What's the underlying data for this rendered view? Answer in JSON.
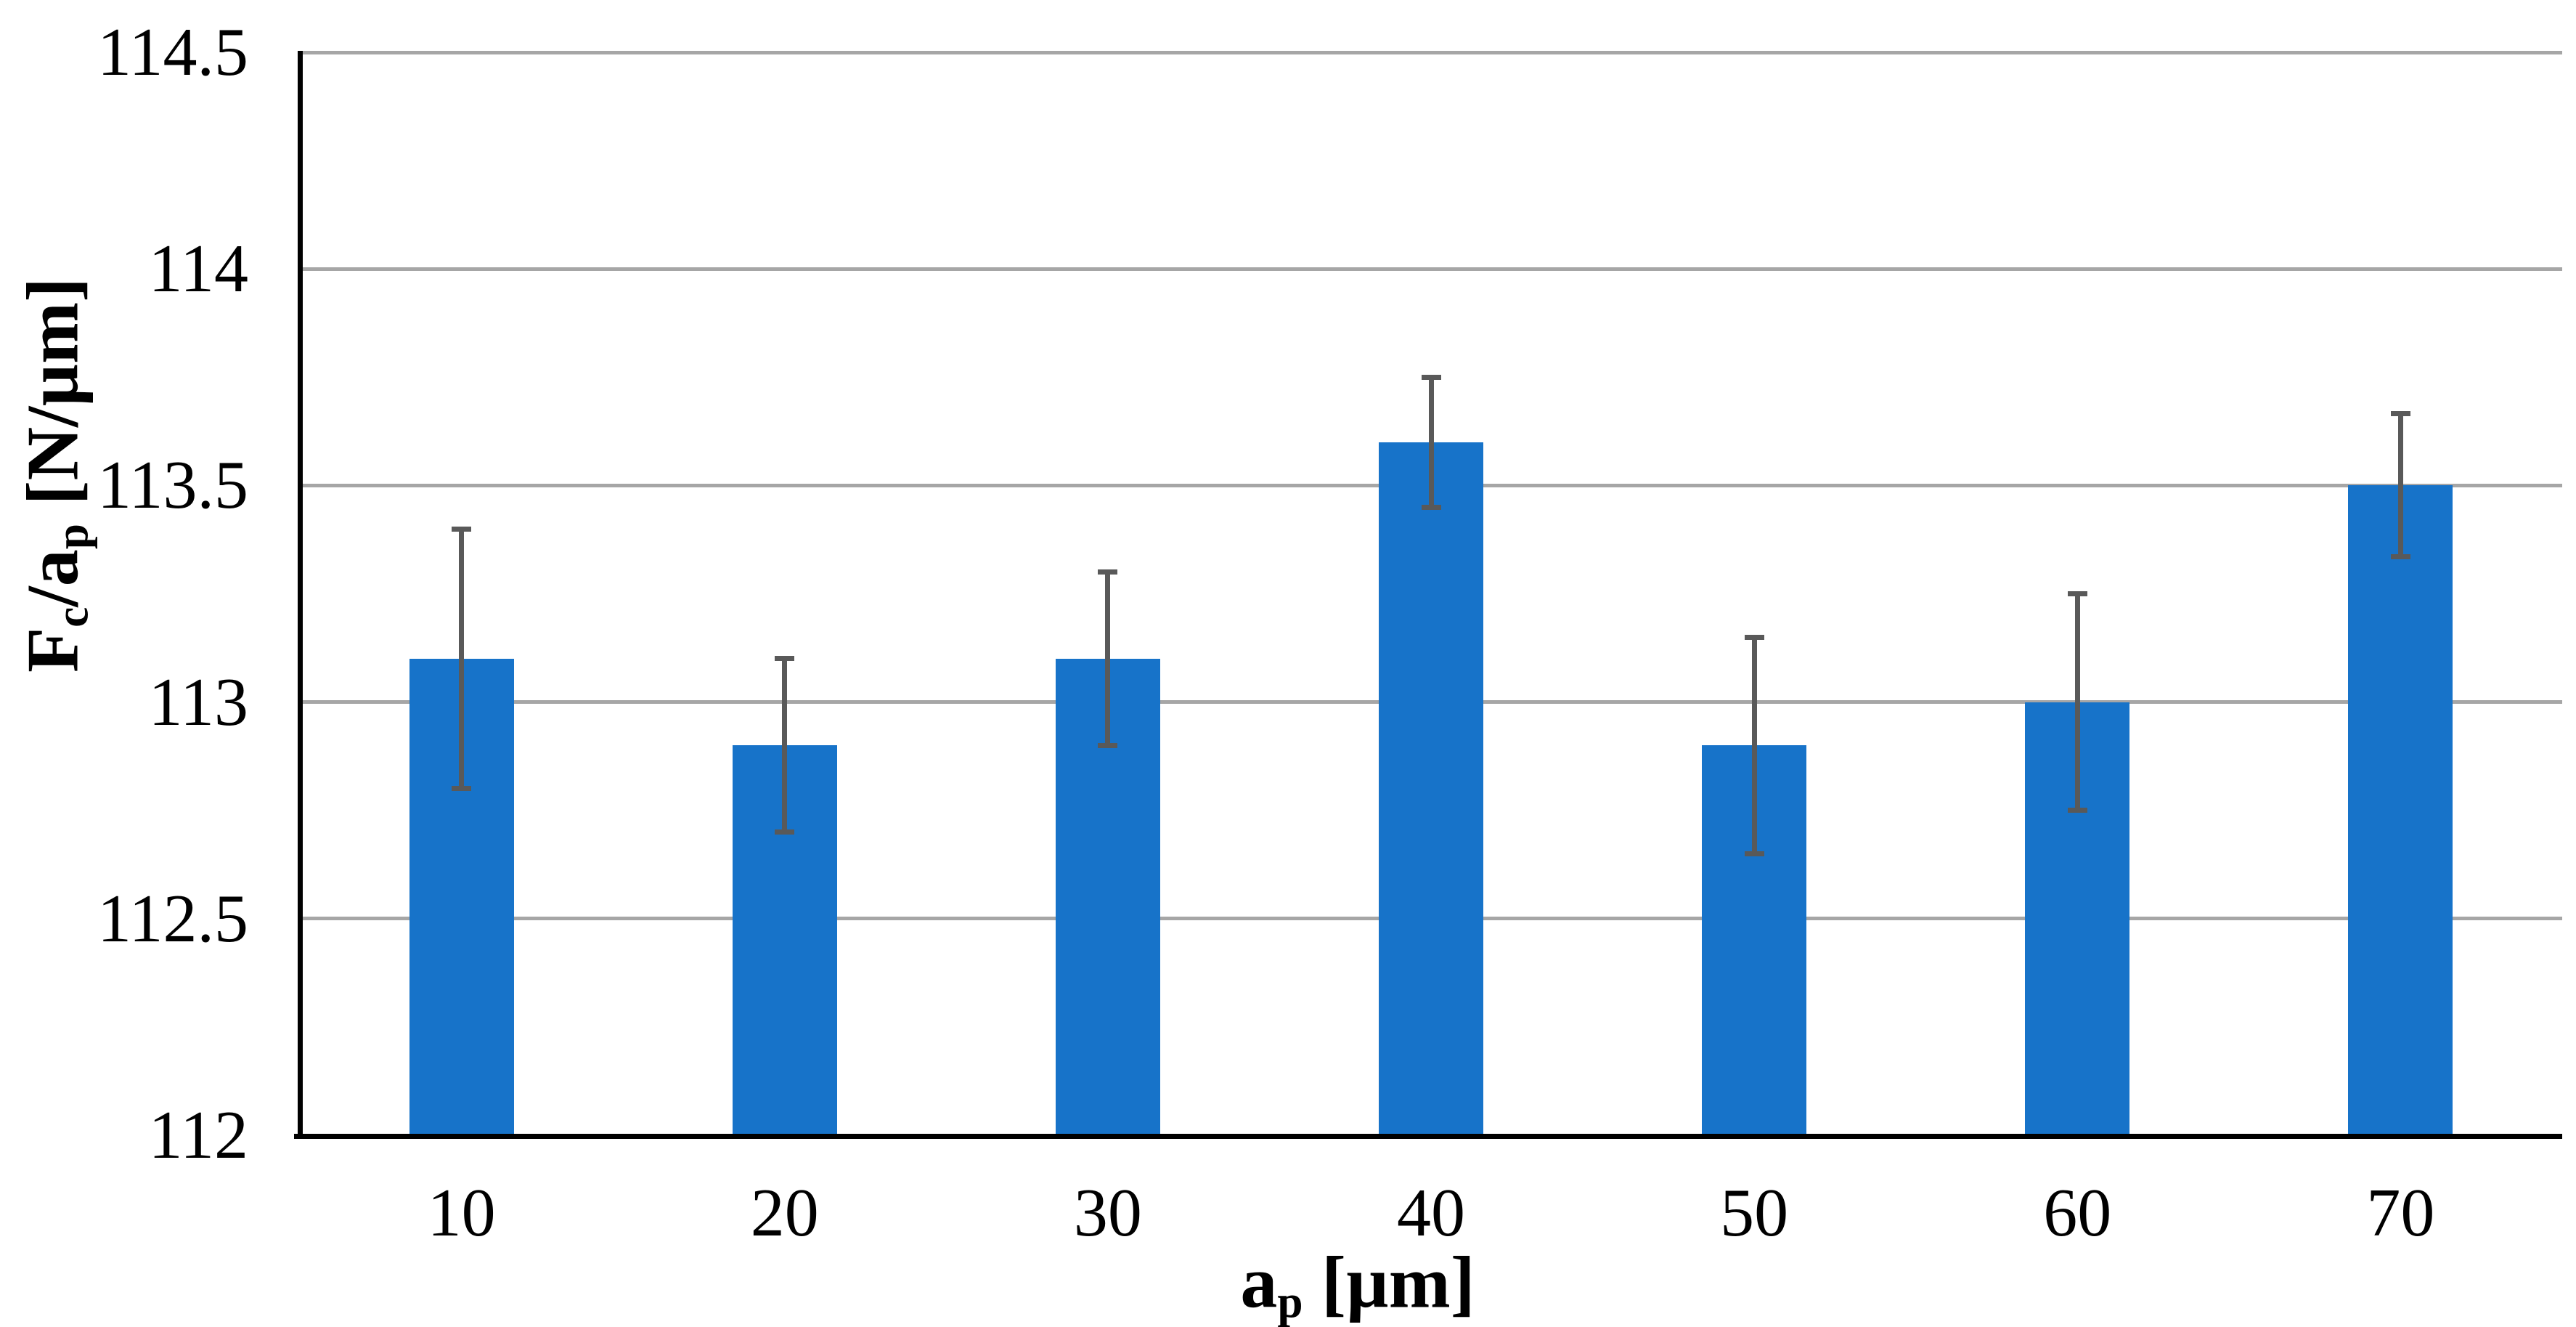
{
  "figure": {
    "background_color": "#FFFFFF"
  },
  "chart_data": {
    "type": "bar",
    "title": "",
    "categories": [
      "10",
      "20",
      "30",
      "40",
      "50",
      "60",
      "70"
    ],
    "values": [
      113.1,
      112.9,
      113.1,
      113.6,
      112.9,
      113.0,
      113.5
    ],
    "error_plus": [
      0.3,
      0.2,
      0.2,
      0.15,
      0.25,
      0.25,
      0.165
    ],
    "error_minus": [
      0.3,
      0.2,
      0.2,
      0.15,
      0.25,
      0.25,
      0.165
    ],
    "xlabel_plain": "ap [µm]",
    "ylabel_plain": "Fc/ap [N/µm]",
    "xlabel_parts": [
      {
        "text": "a"
      },
      {
        "text": "p",
        "sub": true
      },
      {
        "text": " [µm]"
      }
    ],
    "ylabel_parts": [
      {
        "text": "F"
      },
      {
        "text": "c",
        "sub": true
      },
      {
        "text": "/a"
      },
      {
        "text": "p",
        "sub": true
      },
      {
        "text": " [N/µm]"
      }
    ],
    "ylim": [
      112,
      114.5
    ],
    "yticks": [
      112,
      112.5,
      113,
      113.5,
      114,
      114.5
    ],
    "ytick_labels": [
      "112",
      "112.5",
      "113",
      "113.5",
      "114",
      "114.5"
    ],
    "grid": "horizontal-only",
    "legend": null,
    "colors": {
      "bar": "#1773C9",
      "error_bar": "#595959",
      "gridline": "#A6A6A6",
      "axis": "#000000",
      "text": "#000000"
    }
  }
}
